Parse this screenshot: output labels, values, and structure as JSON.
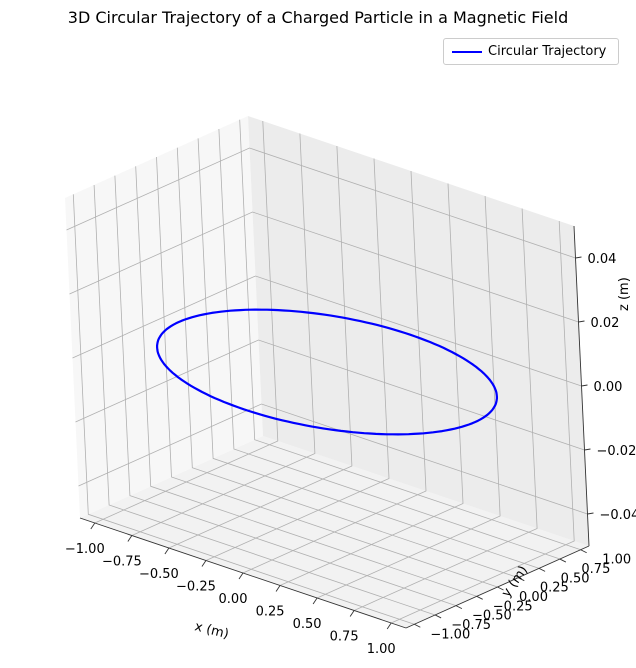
{
  "chart_data": {
    "type": "line",
    "projection": "3d",
    "title": "3D Circular Trajectory of a Charged Particle in a Magnetic Field",
    "xlabel": "x (m)",
    "ylabel": "y (m)",
    "zlabel": "z (m)",
    "xlim": [
      -1.1,
      1.1
    ],
    "ylim": [
      -1.1,
      1.1
    ],
    "zlim": [
      -0.05,
      0.05
    ],
    "xticks": [
      "−1.00",
      "−0.75",
      "−0.50",
      "−0.25",
      "0.00",
      "0.25",
      "0.50",
      "0.75",
      "1.00"
    ],
    "yticks": [
      "−1.00",
      "−0.75",
      "−0.50",
      "−0.25",
      "0.00",
      "0.25",
      "0.50",
      "0.75",
      "1.00"
    ],
    "zticks": [
      "−0.04",
      "−0.02",
      "0.00",
      "0.02",
      "0.04"
    ],
    "grid": true,
    "legend_position": "top-right",
    "series": [
      {
        "name": "Circular Trajectory",
        "color": "#0000ff",
        "shape": "circle",
        "radius": 1.0,
        "center": [
          0,
          0,
          0
        ]
      }
    ]
  }
}
